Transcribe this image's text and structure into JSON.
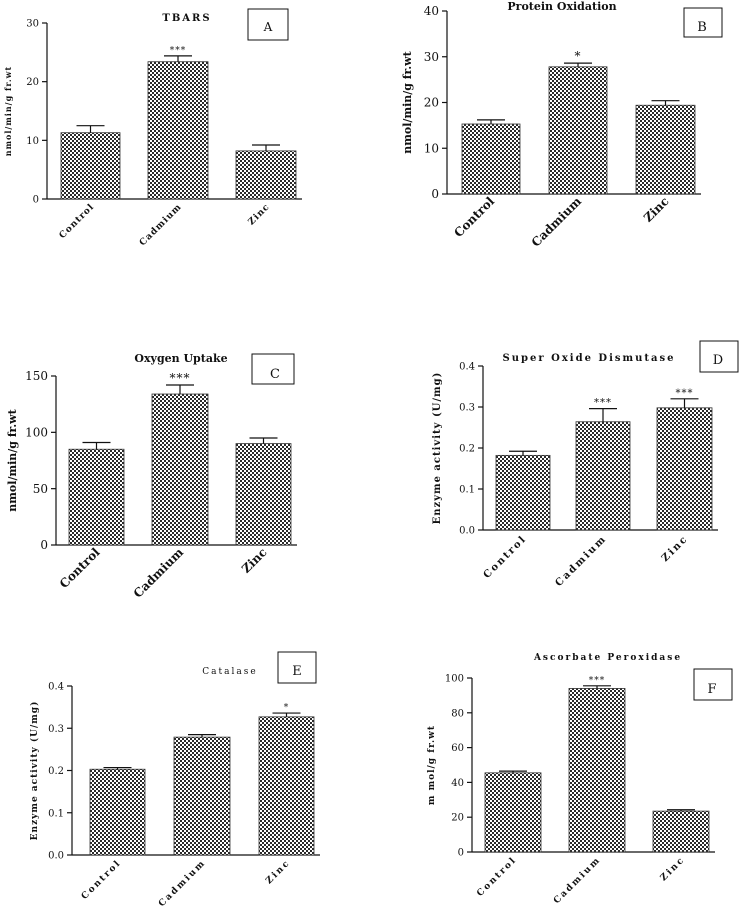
{
  "chart_data": [
    {
      "type": "bar",
      "panel_label": "A",
      "title": "TBARS",
      "ylabel": "nmol/min/g fr.wt",
      "xlabel": "",
      "categories": [
        "Control",
        "Cadmium",
        "Zinc"
      ],
      "values": [
        11.3,
        23.4,
        8.2
      ],
      "errors": [
        1.2,
        1.0,
        1.0
      ],
      "annotations": [
        "",
        "***",
        ""
      ],
      "ylim": [
        0,
        30
      ],
      "yticks": [
        "0",
        "10",
        "20",
        "30"
      ]
    },
    {
      "type": "bar",
      "panel_label": "B",
      "title": "Protein Oxidation",
      "ylabel": "nmol/min/g fr.wt",
      "xlabel": "",
      "categories": [
        "Control",
        "Cadmium",
        "Zinc"
      ],
      "values": [
        15.3,
        27.8,
        19.4
      ],
      "errors": [
        0.9,
        0.8,
        1.0
      ],
      "annotations": [
        "",
        "*",
        ""
      ],
      "ylim": [
        0,
        40
      ],
      "yticks": [
        "0",
        "10",
        "20",
        "30",
        "40"
      ]
    },
    {
      "type": "bar",
      "panel_label": "C",
      "title": "Oxygen Uptake",
      "ylabel": "nmol/min/g fr.wt",
      "xlabel": "",
      "categories": [
        "Control",
        "Cadmium",
        "Zinc"
      ],
      "values": [
        85,
        134,
        90
      ],
      "errors": [
        6,
        8,
        5
      ],
      "annotations": [
        "",
        "***",
        ""
      ],
      "ylim": [
        0,
        150
      ],
      "yticks": [
        "0",
        "50",
        "100",
        "150"
      ]
    },
    {
      "type": "bar",
      "panel_label": "D",
      "title": "Super Oxide Dismutase",
      "ylabel": "Enzyme activity (U/mg)",
      "xlabel": "",
      "categories": [
        "Control",
        "Cadmium",
        "Zinc"
      ],
      "values": [
        0.182,
        0.264,
        0.298
      ],
      "errors": [
        0.01,
        0.032,
        0.022
      ],
      "annotations": [
        "",
        "***",
        "***"
      ],
      "ylim": [
        0,
        0.4
      ],
      "yticks": [
        "0.0",
        "0.1",
        "0.2",
        "0.3",
        "0.4"
      ]
    },
    {
      "type": "bar",
      "panel_label": "E",
      "title": "Catalase",
      "ylabel": "Enzyme activity (U/mg)",
      "xlabel": "",
      "categories": [
        "Control",
        "Cadmium",
        "Zinc"
      ],
      "values": [
        0.203,
        0.279,
        0.327
      ],
      "errors": [
        0.004,
        0.006,
        0.009
      ],
      "annotations": [
        "",
        "",
        "*"
      ],
      "ylim": [
        0,
        0.4
      ],
      "yticks": [
        "0.0",
        "0.1",
        "0.2",
        "0.3",
        "0.4"
      ]
    },
    {
      "type": "bar",
      "panel_label": "F",
      "title": "Ascorbate Peroxidase",
      "ylabel": "m mol/g fr.wt",
      "xlabel": "",
      "categories": [
        "Control",
        "Cadmium",
        "Zinc"
      ],
      "values": [
        45.5,
        94,
        23.5
      ],
      "errors": [
        1.0,
        1.5,
        0.8
      ],
      "annotations": [
        "",
        "***",
        ""
      ],
      "ylim": [
        0,
        100
      ],
      "yticks": [
        "0",
        "20",
        "40",
        "60",
        "80",
        "100"
      ]
    }
  ]
}
